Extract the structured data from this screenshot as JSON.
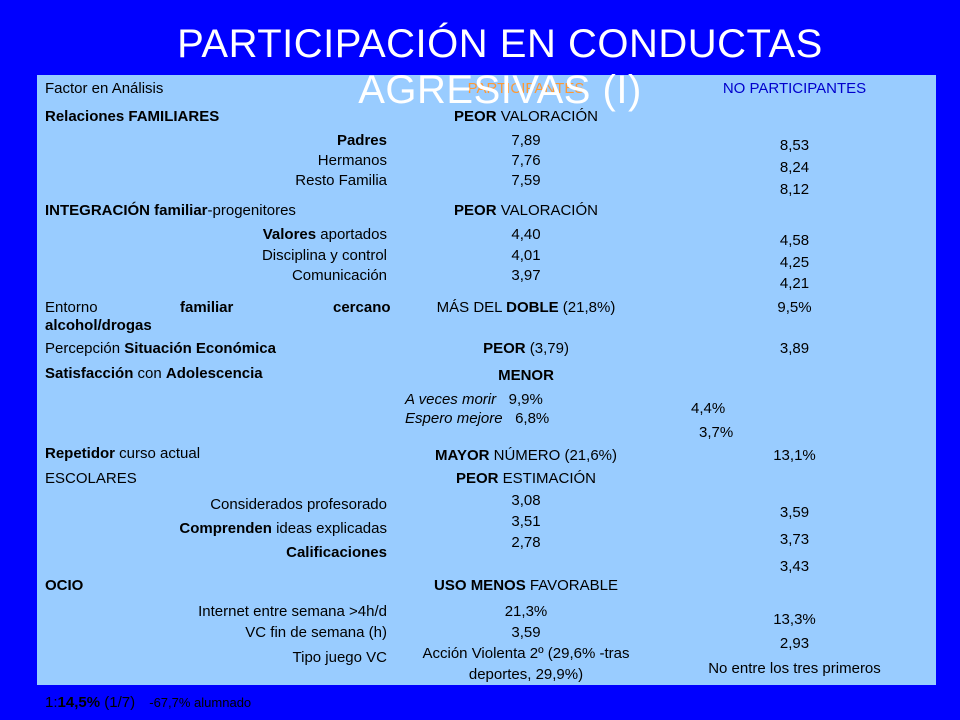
{
  "title": {
    "line1": "PARTICIPACIÓN EN CONDUCTAS",
    "line2": "AGRESIVAS (I)"
  },
  "header": {
    "factor": "Factor en Análisis",
    "participantes": "PARTICIPANTES",
    "no_participantes": "NO PARTICIPANTES"
  },
  "familiares": {
    "heading": "Relaciones FAMILIARES",
    "peor": "PEOR",
    "valoracion": "VALORACIÓN",
    "padres": "Padres",
    "hermanos": "Hermanos",
    "resto": "Resto Familia",
    "p_padres": "7,89",
    "p_hermanos": "7,76",
    "p_resto": "7,59",
    "np_padres": "8,53",
    "np_hermanos": "8,24",
    "np_resto": "8,12"
  },
  "integracion": {
    "heading_bold": "INTEGRACIÓN familiar",
    "heading_rest": "-progenitores",
    "peor": "PEOR",
    "valoracion": "VALORACIÓN",
    "valores_bold": "Valores",
    "valores_rest": " aportados",
    "disciplina": "Disciplina y control",
    "comunicacion": "Comunicación",
    "p_valores": "4,40",
    "p_disciplina": "4,01",
    "p_comunicacion": "3,97",
    "np_valores": "4,58",
    "np_disciplina": "4,25",
    "np_comunicacion": "4,21"
  },
  "entorno": {
    "w1": "Entorno",
    "w2": "familiar",
    "w3": "cercano",
    "w4": "alcohol/drogas",
    "mas_del": "MÁS DEL",
    "doble": "DOBLE",
    "pct": "(21,8%)",
    "np": "9,5%"
  },
  "economica": {
    "percepcion": "Percepción",
    "situacion": "Situación Económica",
    "peor": "PEOR",
    "p": "(3,79)",
    "np": "3,89"
  },
  "satisfaccion": {
    "sat": "Satisfacción",
    "con": " con ",
    "adol": "Adolescencia",
    "menor": "MENOR",
    "morir_label": "A veces morir",
    "morir_val": "9,9%",
    "mejore_label": "Espero mejore",
    "mejore_val": "6,8%",
    "np_morir": "4,4%",
    "np_mejore": "3,7%"
  },
  "repetidor": {
    "bold": "Repetidor",
    "rest": " curso actual",
    "mayor": "MAYOR",
    "numero": " NÚMERO (21,6%)",
    "np": "13,1%"
  },
  "escolares": {
    "heading": "ESCOLARES",
    "peor": "PEOR",
    "estimacion": " ESTIMACIÓN",
    "considerados": "Considerados profesorado",
    "comprenden_bold": "Comprenden",
    "comprenden_rest": " ideas explicadas",
    "calificaciones": "Calificaciones",
    "p_considerados": "3,08",
    "p_comprenden": "3,51",
    "p_calificaciones": "2,78",
    "np_considerados": "3,59",
    "np_comprenden": "3,73",
    "np_calificaciones": "3,43"
  },
  "ocio": {
    "heading": "OCIO",
    "uso": "USO MENOS",
    "favorable": " FAVORABLE",
    "internet": "Internet entre semana >4h/d",
    "vc": "VC fin de semana (h)",
    "tipo": "Tipo juego VC",
    "p_internet": "21,3%",
    "p_vc": "3,59",
    "p_tipo1": "Acción Violenta 2º (29,6% -tras",
    "p_tipo2": "deportes, 29,9%)",
    "np_internet": "13,3%",
    "np_vc": "2,93",
    "np_tipo": "No entre los tres primeros"
  },
  "footer": {
    "ratio": "1:",
    "pct": "14,5%",
    "frac": "(1/7)",
    "note": "-67,7% alumnado"
  }
}
